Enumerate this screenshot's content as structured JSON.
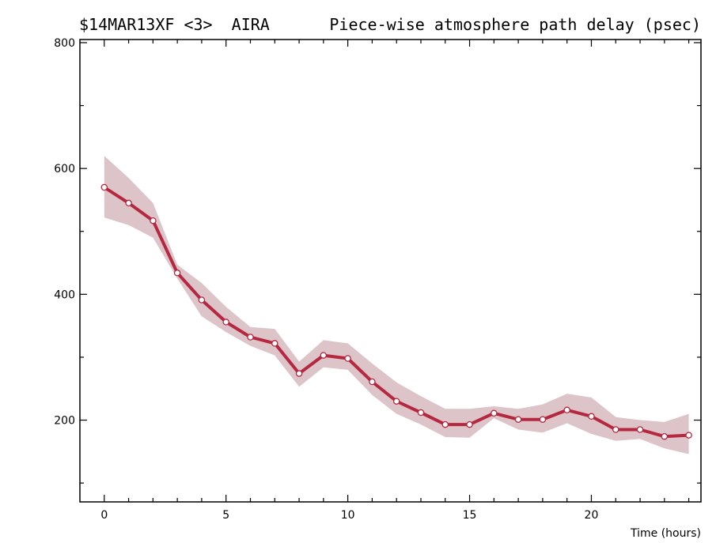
{
  "header": {
    "left": "$14MAR13XF <3>  AIRA",
    "right": "Piece-wise atmosphere path delay (psec)"
  },
  "chart_data": {
    "type": "line",
    "title": "Piece-wise atmosphere path delay (psec)",
    "xlabel": "Time (hours)",
    "ylabel": "",
    "xlim": [
      -1,
      24.5
    ],
    "ylim": [
      70,
      805
    ],
    "x_ticks": [
      0,
      5,
      10,
      15,
      20
    ],
    "y_ticks": [
      200,
      400,
      600,
      800
    ],
    "series": [
      {
        "x": [
          0,
          1,
          2,
          3,
          4,
          5,
          6,
          7,
          8,
          9,
          10,
          11,
          12,
          13,
          14,
          15,
          16,
          17,
          18,
          19,
          20,
          21,
          22,
          23,
          24
        ],
        "values": [
          570,
          545,
          517,
          434,
          391,
          356,
          332,
          322,
          274,
          303,
          298,
          261,
          230,
          212,
          193,
          193,
          211,
          201,
          201,
          216,
          206,
          185,
          185,
          174,
          176
        ],
        "band_upper": [
          620,
          585,
          545,
          447,
          418,
          380,
          348,
          345,
          293,
          327,
          322,
          290,
          260,
          238,
          218,
          218,
          222,
          218,
          225,
          242,
          236,
          205,
          200,
          197,
          210
        ],
        "band_lower": [
          522,
          510,
          490,
          425,
          365,
          340,
          318,
          303,
          253,
          284,
          280,
          240,
          210,
          193,
          173,
          172,
          203,
          185,
          180,
          195,
          178,
          167,
          170,
          155,
          146
        ],
        "color": "#b5283f",
        "band_color": "#dcc4c8"
      }
    ],
    "grid": false,
    "legend": "none"
  }
}
